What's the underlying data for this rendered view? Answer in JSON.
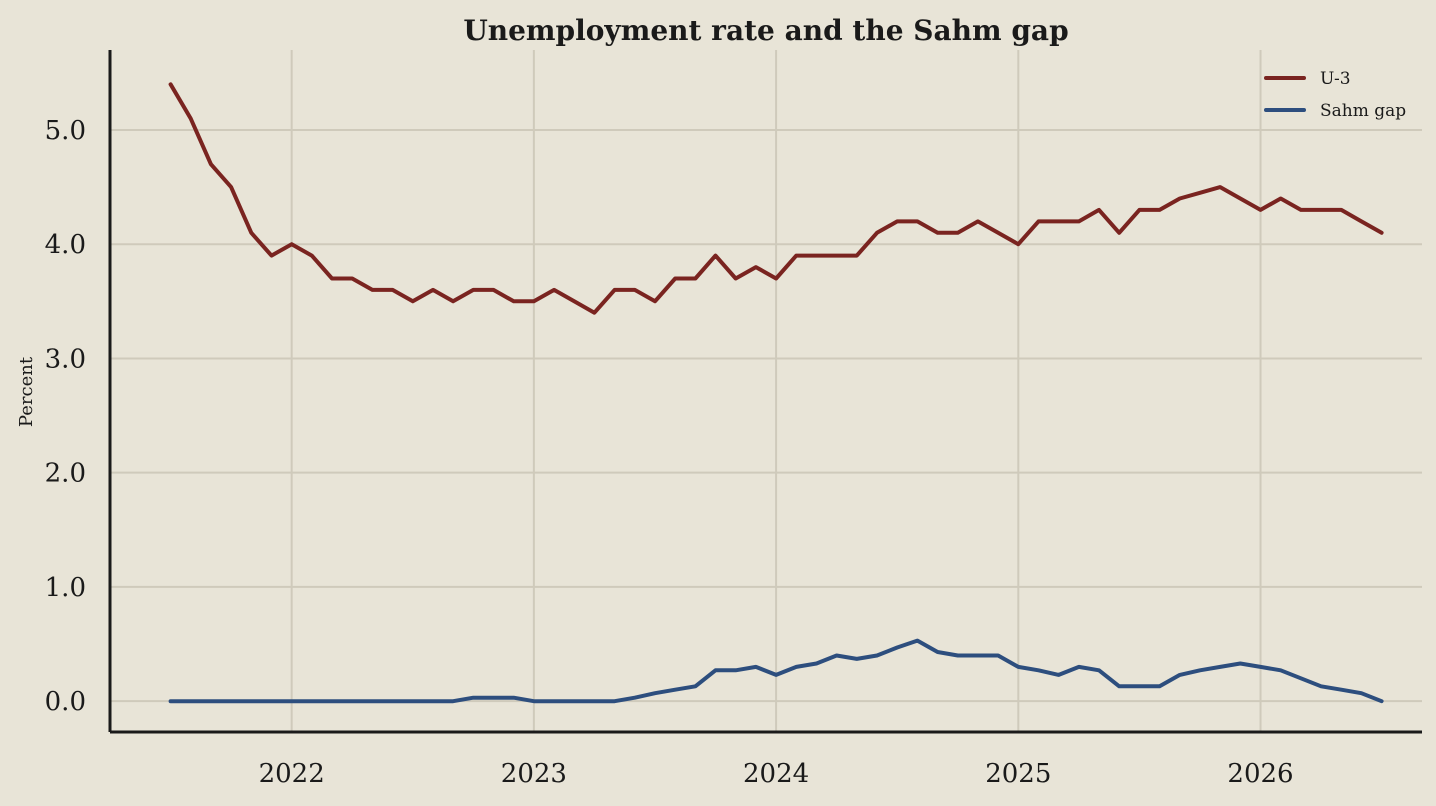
{
  "chart_data": {
    "type": "line",
    "title": "Unemployment rate and the Sahm gap",
    "xlabel": "",
    "ylabel": "Percent",
    "x_ticks": [
      "2022",
      "2023",
      "2024",
      "2025",
      "2026"
    ],
    "y_ticks": [
      "0.0",
      "1.0",
      "2.0",
      "3.0",
      "4.0",
      "5.0"
    ],
    "ylim": [
      -0.27,
      5.7
    ],
    "xlim": [
      "2021-04",
      "2026-09"
    ],
    "grid": true,
    "legend_position": "top-right",
    "x": [
      "2021-07",
      "2021-08",
      "2021-09",
      "2021-10",
      "2021-11",
      "2021-12",
      "2022-01",
      "2022-02",
      "2022-03",
      "2022-04",
      "2022-05",
      "2022-06",
      "2022-07",
      "2022-08",
      "2022-09",
      "2022-10",
      "2022-11",
      "2022-12",
      "2023-01",
      "2023-02",
      "2023-03",
      "2023-04",
      "2023-05",
      "2023-06",
      "2023-07",
      "2023-08",
      "2023-09",
      "2023-10",
      "2023-11",
      "2023-12",
      "2024-01",
      "2024-02",
      "2024-03",
      "2024-04",
      "2024-05",
      "2024-06",
      "2024-07",
      "2024-08",
      "2024-09",
      "2024-10",
      "2024-11",
      "2024-12",
      "2025-01",
      "2025-02",
      "2025-03",
      "2025-04",
      "2025-05",
      "2025-06",
      "2025-07",
      "2025-08",
      "2025-09",
      "2025-10",
      "2025-11",
      "2025-12",
      "2026-01",
      "2026-02",
      "2026-03",
      "2026-04",
      "2026-05",
      "2026-06",
      "2026-07"
    ],
    "series": [
      {
        "name": "U-3",
        "color": "#7a2420",
        "values": [
          5.4,
          5.1,
          4.7,
          4.5,
          4.1,
          3.9,
          4.0,
          3.9,
          3.7,
          3.7,
          3.6,
          3.6,
          3.5,
          3.6,
          3.5,
          3.6,
          3.6,
          3.5,
          3.5,
          3.6,
          3.5,
          3.4,
          3.6,
          3.6,
          3.5,
          3.7,
          3.7,
          3.9,
          3.7,
          3.8,
          3.7,
          3.9,
          3.9,
          3.9,
          3.9,
          4.1,
          4.2,
          4.2,
          4.1,
          4.1,
          4.2,
          4.1,
          4.0,
          4.2,
          4.2,
          4.2,
          4.3,
          4.1,
          4.3,
          4.3,
          4.4,
          4.45,
          4.5,
          4.4,
          4.3,
          4.4,
          4.3,
          4.3,
          4.3,
          4.2,
          4.1
        ]
      },
      {
        "name": "Sahm gap",
        "color": "#2d4e7e",
        "values": [
          0,
          0,
          0,
          0,
          0,
          0,
          0,
          0,
          0,
          0,
          0,
          0,
          0,
          0,
          0,
          0.03,
          0.03,
          0.03,
          0,
          0,
          0,
          0,
          0,
          0.03,
          0.07,
          0.1,
          0.13,
          0.27,
          0.27,
          0.3,
          0.23,
          0.3,
          0.33,
          0.4,
          0.37,
          0.4,
          0.47,
          0.53,
          0.43,
          0.4,
          0.4,
          0.4,
          0.3,
          0.27,
          0.23,
          0.3,
          0.27,
          0.13,
          0.13,
          0.13,
          0.23,
          0.27,
          0.3,
          0.33,
          0.3,
          0.27,
          0.2,
          0.13,
          0.1,
          0.07,
          0
        ]
      }
    ]
  }
}
